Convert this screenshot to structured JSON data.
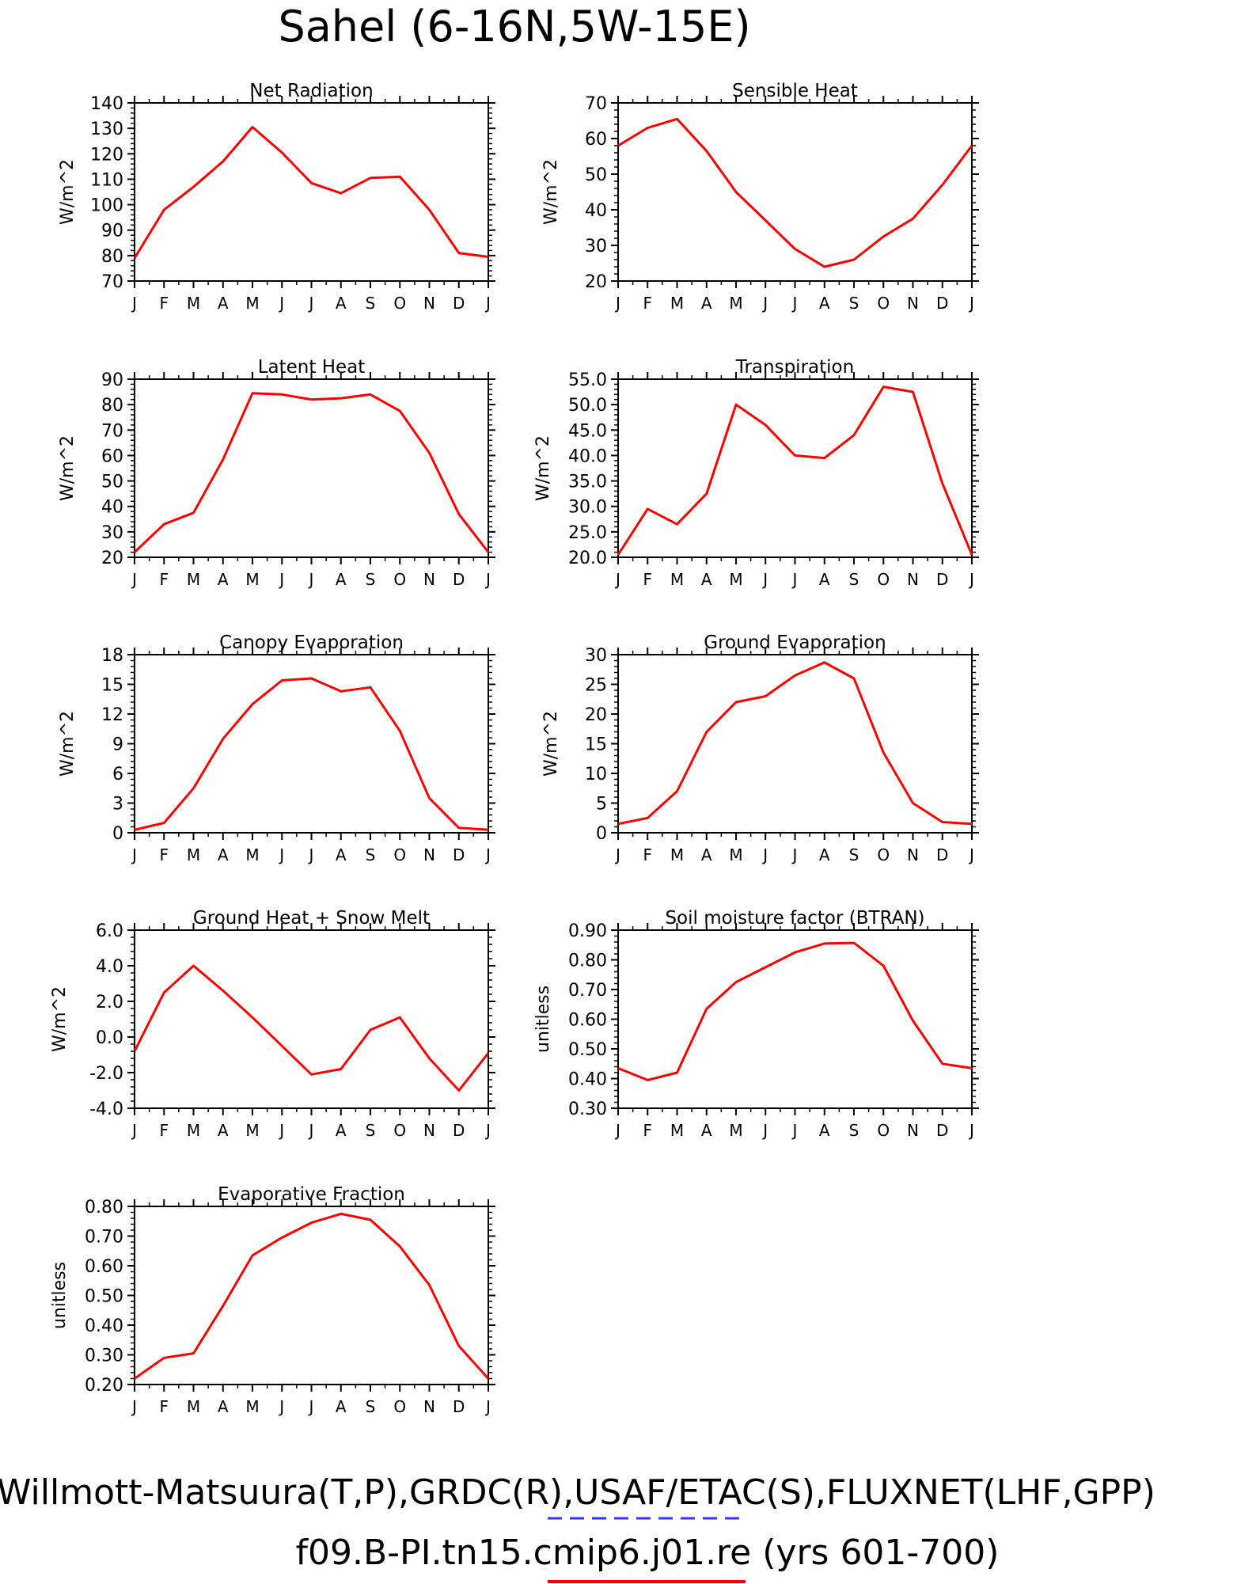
{
  "figure": {
    "title": "Sahel (6-16N,5W-15E)",
    "footer_line1": "Willmott-Matsuura(T,P),GRDC(R),USAF/ETAC(S),FLUXNET(LHF,GPP)",
    "footer_line2": "f09.B-PI.tn15.cmip6.j01.re (yrs 601-700)",
    "footer_line1_line_color": "#3333ff",
    "footer_line2_line_color": "#ff0000"
  },
  "chart_data": [
    {
      "type": "line",
      "title": "Net Radiation",
      "ylabel": "W/m^2",
      "x": [
        "J",
        "F",
        "M",
        "A",
        "M",
        "J",
        "J",
        "A",
        "S",
        "O",
        "N",
        "D",
        "J"
      ],
      "ylim": [
        70,
        140
      ],
      "yticks": [
        "70",
        "80",
        "90",
        "100",
        "110",
        "120",
        "130",
        "140"
      ],
      "series": [
        {
          "color": "#ff0000",
          "values": [
            79,
            98,
            107,
            117,
            130.5,
            120.5,
            108.5,
            104.5,
            110.5,
            111,
            98,
            81,
            79.5
          ]
        }
      ]
    },
    {
      "type": "line",
      "title": "Sensible Heat",
      "ylabel": "W/m^2",
      "x": [
        "J",
        "F",
        "M",
        "A",
        "M",
        "J",
        "J",
        "A",
        "S",
        "O",
        "N",
        "D",
        "J"
      ],
      "ylim": [
        20,
        70
      ],
      "yticks": [
        "20",
        "30",
        "40",
        "50",
        "60",
        "70"
      ],
      "series": [
        {
          "color": "#ff0000",
          "values": [
            58,
            63,
            65.5,
            56.5,
            45,
            37,
            29,
            24,
            26,
            32.5,
            37.5,
            47,
            58
          ]
        }
      ]
    },
    {
      "type": "line",
      "title": "Latent Heat",
      "ylabel": "W/m^2",
      "x": [
        "J",
        "F",
        "M",
        "A",
        "M",
        "J",
        "J",
        "A",
        "S",
        "O",
        "N",
        "D",
        "J"
      ],
      "ylim": [
        20,
        90
      ],
      "yticks": [
        "20",
        "30",
        "40",
        "50",
        "60",
        "70",
        "80",
        "90"
      ],
      "series": [
        {
          "color": "#ff0000",
          "values": [
            22,
            33,
            37.5,
            58.5,
            84.5,
            84,
            82,
            82.5,
            84,
            77.5,
            61,
            37,
            22
          ]
        }
      ]
    },
    {
      "type": "line",
      "title": "Transpiration",
      "ylabel": "W/m^2",
      "x": [
        "J",
        "F",
        "M",
        "A",
        "M",
        "J",
        "J",
        "A",
        "S",
        "O",
        "N",
        "D",
        "J"
      ],
      "ylim": [
        20,
        55
      ],
      "yticks": [
        "20.0",
        "25.0",
        "30.0",
        "35.0",
        "40.0",
        "45.0",
        "50.0",
        "55.0"
      ],
      "series": [
        {
          "color": "#ff0000",
          "values": [
            20.5,
            29.5,
            26.5,
            32.5,
            50,
            46,
            40,
            39.5,
            44,
            53.5,
            52.5,
            34.5,
            20.5
          ]
        }
      ]
    },
    {
      "type": "line",
      "title": "Canopy Evaporation",
      "ylabel": "W/m^2",
      "x": [
        "J",
        "F",
        "M",
        "A",
        "M",
        "J",
        "J",
        "A",
        "S",
        "O",
        "N",
        "D",
        "J"
      ],
      "ylim": [
        0,
        18
      ],
      "yticks": [
        "0",
        "3",
        "6",
        "9",
        "12",
        "15",
        "18"
      ],
      "series": [
        {
          "color": "#ff0000",
          "values": [
            0.3,
            1,
            4.5,
            9.5,
            13,
            15.4,
            15.6,
            14.3,
            14.7,
            10.3,
            3.5,
            0.5,
            0.3
          ]
        }
      ]
    },
    {
      "type": "line",
      "title": "Ground Evaporation",
      "ylabel": "W/m^2",
      "x": [
        "J",
        "F",
        "M",
        "A",
        "M",
        "J",
        "J",
        "A",
        "S",
        "O",
        "N",
        "D",
        "J"
      ],
      "ylim": [
        0,
        30
      ],
      "yticks": [
        "0",
        "5",
        "10",
        "15",
        "20",
        "25",
        "30"
      ],
      "series": [
        {
          "color": "#ff0000",
          "values": [
            1.5,
            2.5,
            7,
            17,
            22,
            23,
            26.5,
            28.7,
            26,
            13.5,
            5,
            1.8,
            1.5
          ]
        }
      ]
    },
    {
      "type": "line",
      "title": "Ground Heat + Snow Melt",
      "ylabel": "W/m^2",
      "x": [
        "J",
        "F",
        "M",
        "A",
        "M",
        "J",
        "J",
        "A",
        "S",
        "O",
        "N",
        "D",
        "J"
      ],
      "ylim": [
        -4,
        6
      ],
      "yticks": [
        "-4.0",
        "-2.0",
        "0.0",
        "2.0",
        "4.0",
        "6.0"
      ],
      "series": [
        {
          "color": "#ff0000",
          "values": [
            -0.8,
            2.5,
            4,
            2.6,
            1.1,
            -0.5,
            -2.1,
            -1.8,
            0.4,
            1.1,
            -1.2,
            -3.0,
            -0.9
          ]
        }
      ]
    },
    {
      "type": "line",
      "title": "Soil moisture factor (BTRAN)",
      "ylabel": "unitless",
      "x": [
        "J",
        "F",
        "M",
        "A",
        "M",
        "J",
        "J",
        "A",
        "S",
        "O",
        "N",
        "D",
        "J"
      ],
      "ylim": [
        0.3,
        0.9
      ],
      "yticks": [
        "0.30",
        "0.40",
        "0.50",
        "0.60",
        "0.70",
        "0.80",
        "0.90"
      ],
      "series": [
        {
          "color": "#ff0000",
          "values": [
            0.435,
            0.395,
            0.42,
            0.635,
            0.725,
            0.775,
            0.825,
            0.855,
            0.857,
            0.78,
            0.595,
            0.45,
            0.435
          ]
        }
      ]
    },
    {
      "type": "line",
      "title": "Evaporative Fraction",
      "ylabel": "unitless",
      "x": [
        "J",
        "F",
        "M",
        "A",
        "M",
        "J",
        "J",
        "A",
        "S",
        "O",
        "N",
        "D",
        "J"
      ],
      "ylim": [
        0.2,
        0.8
      ],
      "yticks": [
        "0.20",
        "0.30",
        "0.40",
        "0.50",
        "0.60",
        "0.70",
        "0.80"
      ],
      "series": [
        {
          "color": "#ff0000",
          "values": [
            0.22,
            0.29,
            0.305,
            0.465,
            0.635,
            0.695,
            0.745,
            0.775,
            0.755,
            0.665,
            0.535,
            0.33,
            0.22
          ]
        }
      ]
    }
  ]
}
